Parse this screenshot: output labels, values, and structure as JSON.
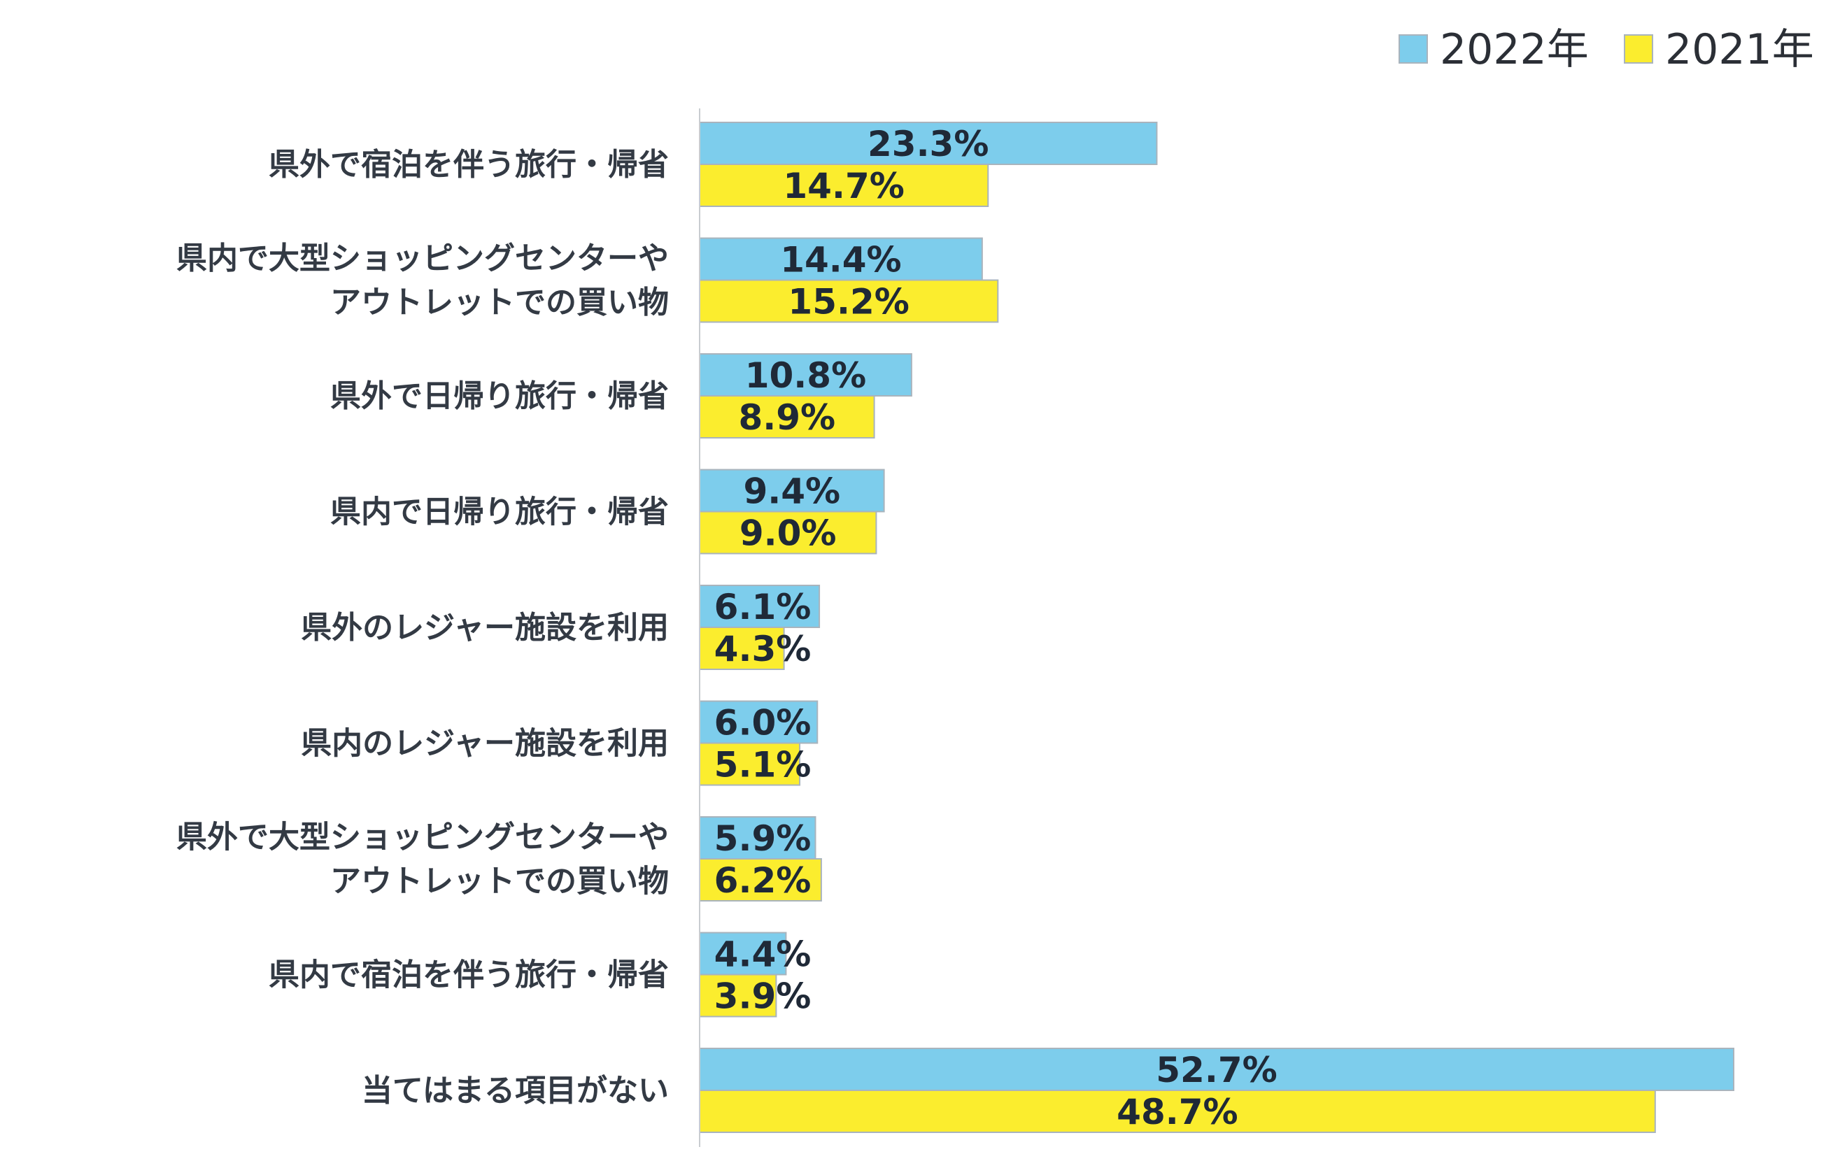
{
  "chart_data": {
    "type": "bar",
    "orientation": "horizontal",
    "categories": [
      [
        "県外で宿泊を伴う旅行・帰省"
      ],
      [
        "県内で大型ショッピングセンターや",
        "アウトレットでの買い物"
      ],
      [
        "県外で日帰り旅行・帰省"
      ],
      [
        "県内で日帰り旅行・帰省"
      ],
      [
        "県外のレジャー施設を利用"
      ],
      [
        "県内のレジャー施設を利用"
      ],
      [
        "県外で大型ショッピングセンターや",
        "アウトレットでの買い物"
      ],
      [
        "県内で宿泊を伴う旅行・帰省"
      ],
      [
        "当てはまる項目がない"
      ]
    ],
    "series": [
      {
        "name": "2022年",
        "color": "#7dcdec",
        "values": [
          23.3,
          14.4,
          10.8,
          9.4,
          6.1,
          6.0,
          5.9,
          4.4,
          52.7
        ],
        "labels": [
          "23.3%",
          "14.4%",
          "10.8%",
          "9.4%",
          "6.1%",
          "6.0%",
          "5.9%",
          "4.4%",
          "52.7%"
        ]
      },
      {
        "name": "2021年",
        "color": "#fbed2e",
        "values": [
          14.7,
          15.2,
          8.9,
          9.0,
          4.3,
          5.1,
          6.2,
          3.9,
          48.7
        ],
        "labels": [
          "14.7%",
          "15.2%",
          "8.9%",
          "9.0%",
          "4.3%",
          "5.1%",
          "6.2%",
          "3.9%",
          "48.7%"
        ]
      }
    ],
    "xlim": [
      0,
      55
    ],
    "legend": "top-right",
    "grid": false,
    "bar_border_color": "#a9b4bd",
    "axis_color": "#c8ccd0"
  }
}
